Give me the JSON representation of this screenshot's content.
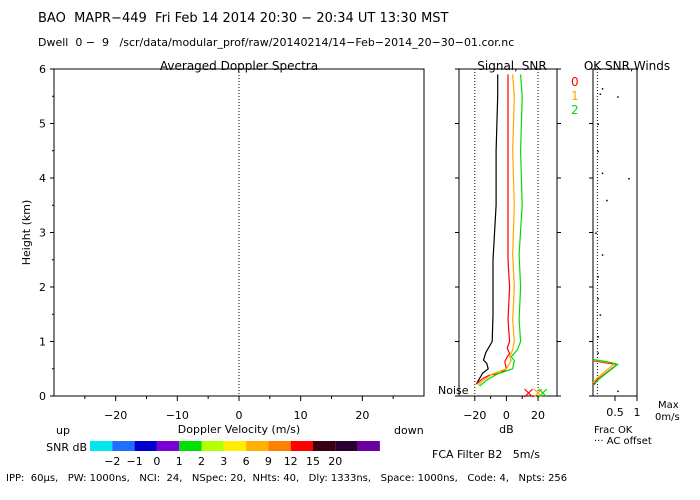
{
  "header": {
    "line1": "BAO  MAPR−449  Fri Feb 14 2014 20:30 − 20:34 UT 13:30 MST",
    "line2": "Dwell  0 −  9   /scr/data/modular_prof/raw/20140214/14−Feb−2014_20−30−01.cor.nc"
  },
  "footer": {
    "params": "IPP:  60μs,   PW: 1000ns,   NCI:  24,   NSpec: 20,  NHts: 40,   Dly: 1333ns,   Space: 1000ns,   Code: 4,   Npts: 256",
    "filter": "FCA Filter B2   5m/s"
  },
  "colors": {
    "series0": "#ff0000",
    "series1": "#ffa500",
    "series2": "#00dd00",
    "snr_scale": [
      "#00e5ee",
      "#1e6fff",
      "#0000cd",
      "#7b00d4",
      "#00e000",
      "#b4ff00",
      "#ffee00",
      "#ffb000",
      "#ff7f00",
      "#ff0000",
      "#3a0010",
      "#2b0030",
      "#6a00a0"
    ]
  },
  "chart_data": [
    {
      "type": "line",
      "title": "Averaged Doppler Spectra",
      "xlabel": "Doppler Velocity (m/s)",
      "ylabel": "Height (km)",
      "xlim": [
        -30,
        30
      ],
      "ylim": [
        0,
        6
      ],
      "x_ticks": [
        -20,
        -10,
        0,
        10,
        20
      ],
      "y_ticks": [
        0,
        1,
        2,
        3,
        4,
        5,
        6
      ],
      "left_note": "up",
      "right_note": "down",
      "series": []
    },
    {
      "type": "line",
      "title": "Signal, SNR",
      "xlabel": "dB",
      "xlim": [
        -30,
        32
      ],
      "ylim": [
        0,
        6
      ],
      "x_ticks": [
        -20,
        0,
        20
      ],
      "x_minor_ticks": [
        -10,
        10
      ],
      "noise_label": "Noise",
      "legend": [
        "0",
        "1",
        "2"
      ],
      "series": [
        {
          "name": "Signal",
          "color": "#000000",
          "points": [
            [
              -19,
              0.22
            ],
            [
              -17,
              0.32
            ],
            [
              -15,
              0.42
            ],
            [
              -11.5,
              0.5
            ],
            [
              -12.5,
              0.6
            ],
            [
              -14.5,
              0.66
            ],
            [
              -13,
              0.8
            ],
            [
              -9,
              1.0
            ],
            [
              -8.5,
              1.5
            ],
            [
              -8.5,
              2.5
            ],
            [
              -6.5,
              3.5
            ],
            [
              -6.5,
              4.5
            ],
            [
              -5.5,
              5.5
            ],
            [
              -5.5,
              5.9
            ]
          ]
        },
        {
          "name": "0",
          "color": "#ff0000",
          "points": [
            [
              -19,
              0.22
            ],
            [
              -15,
              0.32
            ],
            [
              -11,
              0.38
            ],
            [
              -4,
              0.42
            ],
            [
              0,
              0.5
            ],
            [
              -1,
              0.63
            ],
            [
              0.5,
              0.72
            ],
            [
              2,
              0.78
            ],
            [
              0.5,
              0.88
            ],
            [
              2,
              1.0
            ],
            [
              1,
              1.4
            ],
            [
              2,
              2.0
            ],
            [
              1,
              2.5
            ],
            [
              1,
              3.5
            ],
            [
              1,
              4.5
            ],
            [
              1,
              5.5
            ],
            [
              1,
              5.9
            ]
          ]
        },
        {
          "name": "1",
          "color": "#ffa500",
          "points": [
            [
              -18,
              0.2
            ],
            [
              -14,
              0.3
            ],
            [
              -9,
              0.4
            ],
            [
              0,
              0.5
            ],
            [
              3,
              0.65
            ],
            [
              2,
              0.72
            ],
            [
              4,
              0.85
            ],
            [
              5,
              1.0
            ],
            [
              4,
              1.4
            ],
            [
              5,
              2.0
            ],
            [
              4,
              2.6
            ],
            [
              5,
              3.5
            ],
            [
              4,
              4.5
            ],
            [
              5,
              5.5
            ],
            [
              4,
              5.9
            ]
          ]
        },
        {
          "name": "2",
          "color": "#00dd00",
          "points": [
            [
              -17,
              0.18
            ],
            [
              -12,
              0.3
            ],
            [
              -6,
              0.4
            ],
            [
              4,
              0.5
            ],
            [
              5,
              0.65
            ],
            [
              3,
              0.72
            ],
            [
              7,
              0.85
            ],
            [
              9,
              1.0
            ],
            [
              8,
              1.4
            ],
            [
              9,
              2.0
            ],
            [
              8,
              2.6
            ],
            [
              10,
              3.5
            ],
            [
              9,
              4.5
            ],
            [
              10,
              5.5
            ],
            [
              9,
              5.9
            ]
          ]
        }
      ],
      "noise_markers": [
        {
          "name": "0",
          "color": "#ff0000",
          "x": 14
        },
        {
          "name": "1",
          "color": "#ffa500",
          "x": 20
        },
        {
          "name": "2",
          "color": "#00dd00",
          "x": 23
        }
      ]
    },
    {
      "type": "line",
      "title": "OK SNR,Winds",
      "xlim": [
        0,
        1
      ],
      "ylim": [
        0,
        6
      ],
      "x_tick_labels": [
        "0.5",
        "1"
      ],
      "label_frac": "Frac OK",
      "label_ac": "··· AC offset",
      "label_max": "Max",
      "label_speed": "0m/s",
      "series": [
        {
          "name": "0",
          "color": "#ff0000",
          "points": [
            [
              0,
              0.65
            ],
            [
              0.35,
              0.6
            ],
            [
              0.55,
              0.58
            ],
            [
              0.1,
              0.3
            ],
            [
              0,
              0.2
            ]
          ]
        },
        {
          "name": "1",
          "color": "#ffa500",
          "points": [
            [
              0,
              0.66
            ],
            [
              0.3,
              0.62
            ],
            [
              0.5,
              0.6
            ],
            [
              0.08,
              0.32
            ],
            [
              0,
              0.24
            ]
          ]
        },
        {
          "name": "2",
          "color": "#00dd00",
          "points": [
            [
              0,
              0.67
            ],
            [
              0.32,
              0.63
            ],
            [
              0.56,
              0.58
            ],
            [
              0.12,
              0.3
            ],
            [
              0.02,
              0.2
            ]
          ]
        }
      ],
      "winds_dots": [
        [
          0.2,
          5.65
        ],
        [
          0.15,
          5.55
        ],
        [
          0.55,
          5.5
        ],
        [
          0.1,
          5.0
        ],
        [
          0.1,
          4.5
        ],
        [
          0.2,
          4.1
        ],
        [
          0.8,
          4.0
        ],
        [
          0.3,
          3.6
        ],
        [
          0.05,
          3.0
        ],
        [
          0.2,
          2.6
        ],
        [
          0.1,
          2.2
        ],
        [
          0.1,
          1.8
        ],
        [
          0.15,
          1.5
        ],
        [
          0.1,
          1.1
        ],
        [
          0.1,
          0.8
        ],
        [
          0.55,
          0.1
        ]
      ]
    }
  ],
  "snr_scale": {
    "title": "SNR dB",
    "labels": [
      "−2",
      "−1",
      "0",
      "1",
      "2",
      "3",
      "6",
      "9",
      "12",
      "15",
      "20"
    ]
  }
}
